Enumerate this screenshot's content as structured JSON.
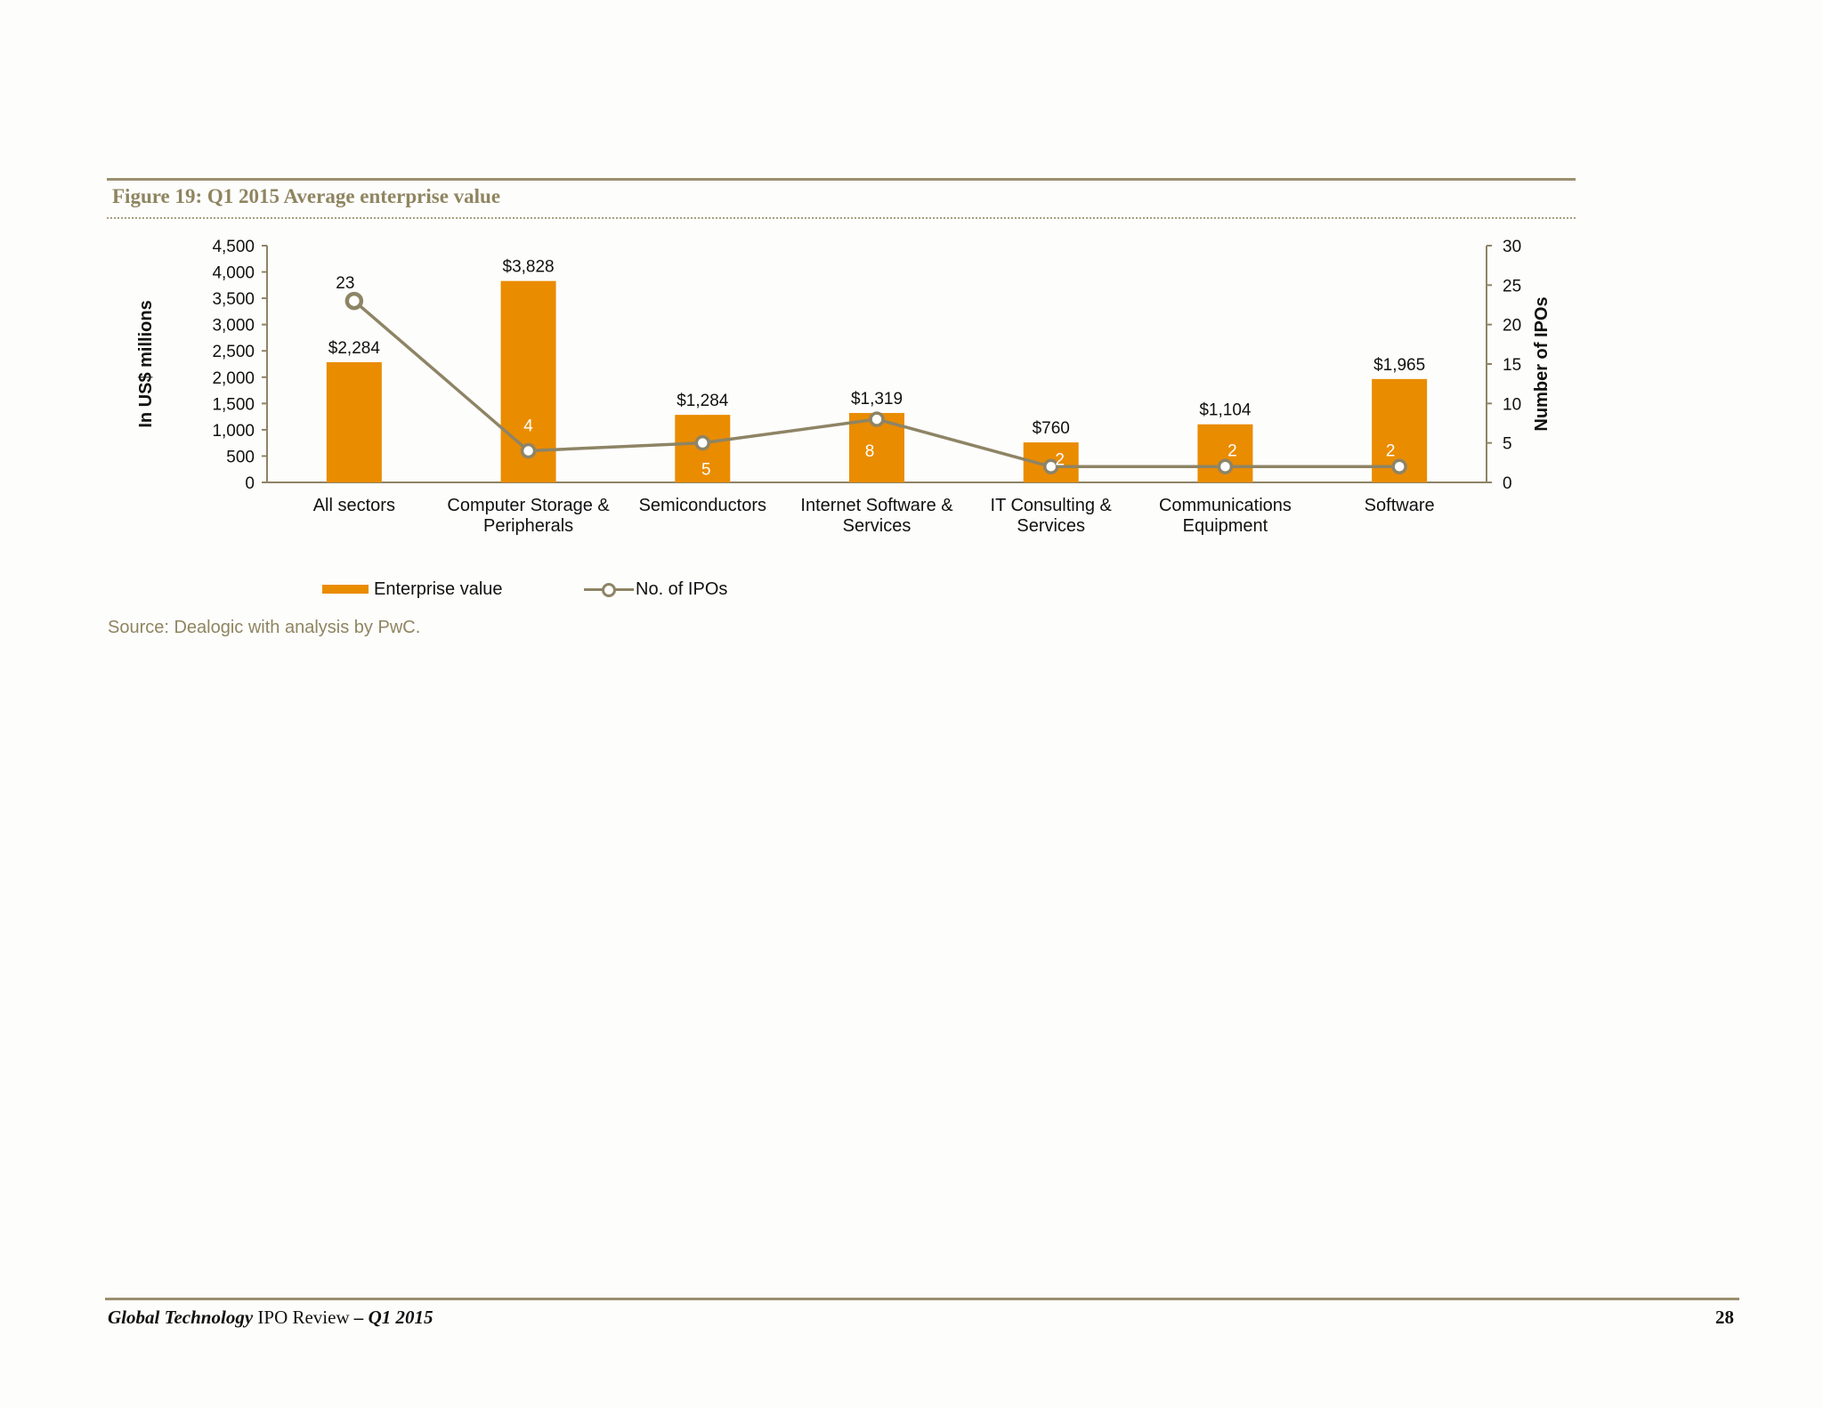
{
  "figure": {
    "title": "Figure 19: Q1 2015 Average enterprise value",
    "source": "Source: Dealogic with analysis by PwC."
  },
  "chart_data": {
    "type": "bar",
    "categories": [
      [
        "All sectors"
      ],
      [
        "Computer Storage &",
        "Peripherals"
      ],
      [
        "Semiconductors"
      ],
      [
        "Internet Software &",
        "Services"
      ],
      [
        "IT Consulting &",
        "Services"
      ],
      [
        "Communications",
        "Equipment"
      ],
      [
        "Software"
      ]
    ],
    "series": [
      {
        "name": "Enterprise value",
        "type": "bar",
        "axis": "left",
        "values": [
          2284,
          3828,
          1284,
          1319,
          760,
          1104,
          1965
        ],
        "labels": [
          "$2,284",
          "$3,828",
          "$1,284",
          "$1,319",
          "$760",
          "$1,104",
          "$1,965"
        ]
      },
      {
        "name": "No. of IPOs",
        "type": "line",
        "axis": "right",
        "values": [
          23,
          4,
          5,
          8,
          2,
          2,
          2
        ],
        "labels": [
          "23",
          "4",
          "5",
          "8",
          "2",
          "2",
          "2"
        ]
      }
    ],
    "ylabel": "In US$ millions",
    "y2label": "Number of IPOs",
    "ylim": [
      0,
      4500
    ],
    "y_ticks": [
      "0",
      "500",
      "1,000",
      "1,500",
      "2,000",
      "2,500",
      "3,000",
      "3,500",
      "4,000",
      "4,500"
    ],
    "y2lim": [
      0,
      30
    ],
    "y2_ticks": [
      "0",
      "5",
      "10",
      "15",
      "20",
      "25",
      "30"
    ],
    "legend_position": "bottom-left",
    "colors": {
      "bar": "#ea8c00",
      "line": "#8e8465",
      "axis": "#8e8465"
    }
  },
  "legend": {
    "enterprise_value": "Enterprise value",
    "ipos": "No. of IPOs"
  },
  "footer": {
    "title_bold": "Global Technology",
    "title_mid": " IPO Review ",
    "title_end": "– Q1 2015",
    "page": "28"
  }
}
